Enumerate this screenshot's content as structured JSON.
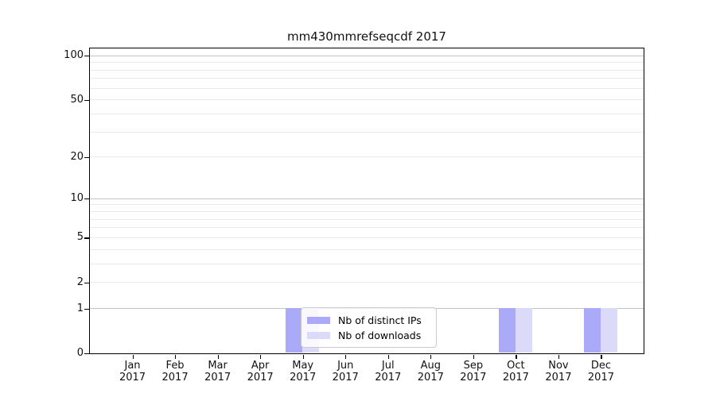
{
  "title": "mm430mmrefseqcdf 2017",
  "chart_data": {
    "type": "bar",
    "title": "mm430mmrefseqcdf 2017",
    "categories": [
      "Jan 2017",
      "Feb 2017",
      "Mar 2017",
      "Apr 2017",
      "May 2017",
      "Jun 2017",
      "Jul 2017",
      "Aug 2017",
      "Sep 2017",
      "Oct 2017",
      "Nov 2017",
      "Dec 2017"
    ],
    "x_tick_months": [
      "Jan",
      "Feb",
      "Mar",
      "Apr",
      "May",
      "Jun",
      "Jul",
      "Aug",
      "Sep",
      "Oct",
      "Nov",
      "Dec"
    ],
    "x_tick_year": "2017",
    "series": [
      {
        "name": "Nb of distinct IPs",
        "color": "#abaaf8",
        "values": [
          0,
          0,
          0,
          0,
          1,
          0,
          0,
          0,
          0,
          1,
          0,
          1
        ]
      },
      {
        "name": "Nb of downloads",
        "color": "#dbdaf8",
        "values": [
          0,
          0,
          0,
          0,
          1,
          0,
          0,
          0,
          0,
          1,
          0,
          1
        ]
      }
    ],
    "yscale": "log1p",
    "ylim": [
      0,
      112
    ],
    "xlabel": "",
    "ylabel": "",
    "y_tick_values": [
      0,
      1,
      2,
      5,
      10,
      20,
      50,
      100
    ],
    "y_tick_labels": [
      "0",
      "1",
      "2",
      "5",
      "10",
      "20",
      "50",
      "100"
    ],
    "y_major_gridlines": [
      1,
      10,
      100
    ],
    "y_minor_gridlines": [
      2,
      3,
      4,
      5,
      6,
      7,
      8,
      9,
      20,
      30,
      40,
      50,
      60,
      70,
      80,
      90
    ],
    "grid": true,
    "legend_position": "bottom-center"
  },
  "legend": {
    "items": [
      {
        "label": "Nb of distinct IPs",
        "color": "#abaaf8"
      },
      {
        "label": "Nb of downloads",
        "color": "#dbdaf8"
      }
    ]
  },
  "colors": {
    "bar_distinct_ips": "#abaaf8",
    "bar_downloads": "#dbdaf8",
    "grid_major": "#c3c3c3",
    "grid_minor": "#eaeaea",
    "axis": "#000000",
    "background": "#ffffff"
  }
}
